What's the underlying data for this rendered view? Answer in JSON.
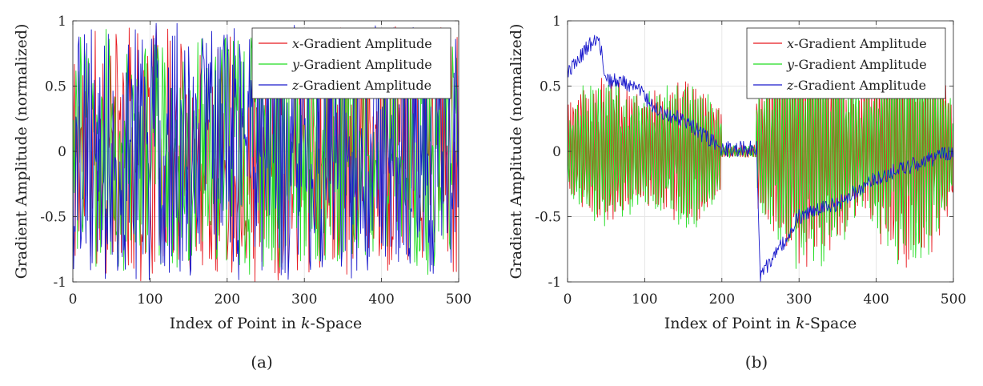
{
  "chart_data": [
    {
      "type": "line",
      "caption": "(a)",
      "xlabel": "Index of Point in k-Space",
      "ylabel": "Gradient Amplitude (normalized)",
      "xlim": [
        0,
        500
      ],
      "ylim": [
        -1,
        1
      ],
      "xticks": [
        0,
        100,
        200,
        300,
        400,
        500
      ],
      "xtick_labels": [
        "0",
        "100",
        "200",
        "300",
        "400",
        "500"
      ],
      "yticks": [
        1,
        0.5,
        0,
        -0.5,
        -1
      ],
      "ytick_labels": [
        "1",
        "0.5",
        "0",
        "-0.5",
        "-1"
      ],
      "grid": true,
      "legend_position": "top-right",
      "n_points": 501,
      "pattern": "noise",
      "series": [
        {
          "name": "x-Gradient Amplitude",
          "axis": "x",
          "color": "#e8191f",
          "amplitude": 0.95,
          "seed": 11
        },
        {
          "name": "y-Gradient Amplitude",
          "axis": "y",
          "color": "#22dd22",
          "amplitude": 0.9,
          "seed": 23
        },
        {
          "name": "z-Gradient Amplitude",
          "axis": "z",
          "color": "#1a1acc",
          "amplitude": 0.95,
          "seed": 37
        }
      ]
    },
    {
      "type": "line",
      "caption": "(b)",
      "xlabel": "Index of Point in k-Space",
      "ylabel": "Gradient Amplitude (normalized)",
      "xlim": [
        0,
        500
      ],
      "ylim": [
        -1,
        1
      ],
      "xticks": [
        0,
        100,
        200,
        300,
        400,
        500
      ],
      "xtick_labels": [
        "0",
        "100",
        "200",
        "300",
        "400",
        "500"
      ],
      "yticks": [
        1,
        0.5,
        0,
        -0.5,
        -1
      ],
      "ytick_labels": [
        "1",
        "0.5",
        "0",
        "-0.5",
        "-1"
      ],
      "grid": true,
      "legend_position": "top-right",
      "n_points": 501,
      "pattern": "structured",
      "z_trend": [
        [
          0,
          0.6
        ],
        [
          40,
          0.9
        ],
        [
          50,
          0.55
        ],
        [
          90,
          0.5
        ],
        [
          100,
          0.42
        ],
        [
          120,
          0.3
        ],
        [
          150,
          0.25
        ],
        [
          170,
          0.15
        ],
        [
          200,
          0.02
        ],
        [
          245,
          0.02
        ],
        [
          250,
          -0.95
        ],
        [
          280,
          -0.7
        ],
        [
          300,
          -0.5
        ],
        [
          350,
          -0.4
        ],
        [
          400,
          -0.2
        ],
        [
          450,
          -0.1
        ],
        [
          500,
          0.0
        ]
      ],
      "series": [
        {
          "name": "x-Gradient Amplitude",
          "axis": "x",
          "color": "#e8191f",
          "seed": 53
        },
        {
          "name": "y-Gradient Amplitude",
          "axis": "y",
          "color": "#22dd22",
          "seed": 71
        },
        {
          "name": "z-Gradient Amplitude",
          "axis": "z",
          "color": "#1a1acc",
          "seed": 89
        }
      ]
    }
  ]
}
